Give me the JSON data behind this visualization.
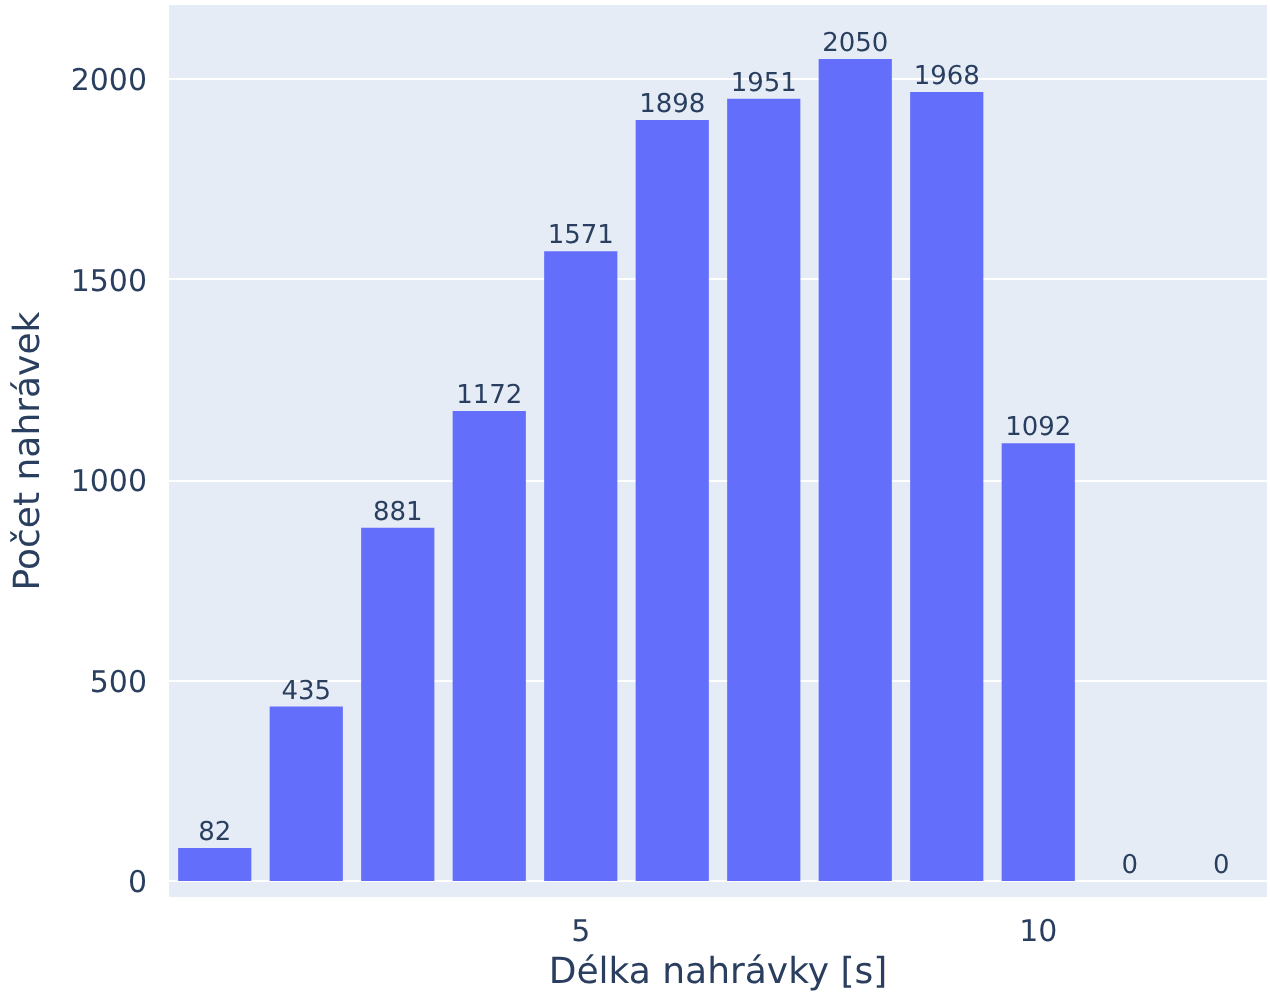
{
  "chart_data": {
    "type": "bar",
    "xlabel": "Délka nahrávky [s]",
    "ylabel": "Počet nahrávek",
    "x": [
      1,
      2,
      3,
      4,
      5,
      6,
      7,
      8,
      9,
      10,
      11,
      12
    ],
    "values": [
      82,
      435,
      881,
      1172,
      1571,
      1898,
      1951,
      2050,
      1968,
      1092,
      0,
      0
    ],
    "color": "#636efa",
    "data_labels": true,
    "xlim": [
      0.5,
      12.5
    ],
    "xticks": [
      5,
      10
    ],
    "ylim": [
      -40,
      2185
    ],
    "yticks": [
      0,
      500,
      1000,
      1500,
      2000
    ],
    "grid": "y"
  }
}
